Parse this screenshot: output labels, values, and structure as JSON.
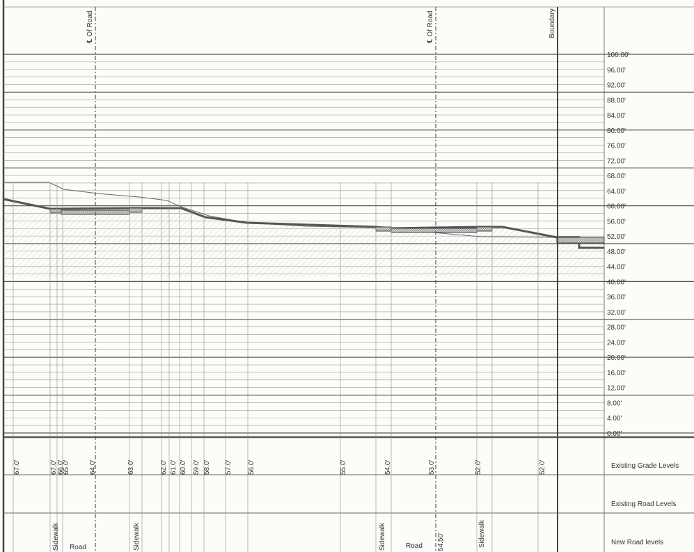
{
  "elevation_labels": [
    "100.00'",
    "96.00'",
    "92.00'",
    "88.00'",
    "84.00'",
    "80.00'",
    "76.00'",
    "72.00'",
    "68.00'",
    "64.00'",
    "60.00'",
    "56.00'",
    "52.00'",
    "48.00'",
    "44.00'",
    "40.00'",
    "36.00'",
    "32.00'",
    "28.00'",
    "24.00'",
    "20.00'",
    "16.00'",
    "12.00'",
    "8.00'",
    "4.00'",
    "0.00'"
  ],
  "centerline_label": "℄ Of Road",
  "boundary_label": "Boundary",
  "row_labels": {
    "existing_grade": "Existing Grade Levels",
    "existing_road": "Existing Road Levels",
    "new_road": "New Road levels"
  },
  "grade_values": [
    "67.0'",
    "67.0'",
    "66.0'",
    "65.0'",
    "64.0'",
    "63.0'",
    "62.0'",
    "61.0'",
    "60.0'",
    "59.0'",
    "58.0'",
    "57.0'",
    "56.0'",
    "55.0'",
    "54.0'",
    "53.0'",
    "52.0'",
    "52.0'"
  ],
  "new_road_values": [
    "54.50'"
  ],
  "zone_labels": {
    "sidewalk": "Sidewalk",
    "road": "Road"
  }
}
